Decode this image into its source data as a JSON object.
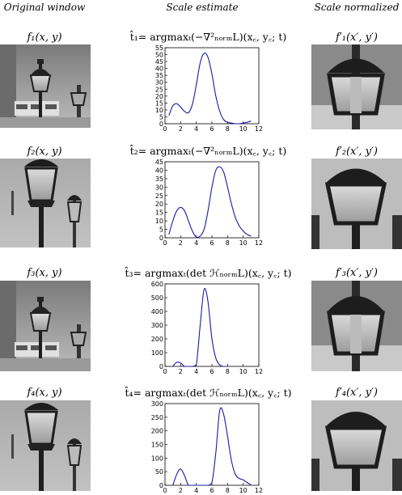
{
  "headers": {
    "original": "Original window",
    "scale": "Scale estimate",
    "normalized": "Scale normalized"
  },
  "rows": [
    {
      "left_label": "f₁(x, y)",
      "equation": "t̂₁= argmaxₜ(−∇²ₙₒᵣₘL)(x꜀, y꜀; t)",
      "right_label": "f′₁(x′, y′)"
    },
    {
      "left_label": "f₂(x, y)",
      "equation": "t̂₂= argmaxₜ(−∇²ₙₒᵣₘL)(x꜀, y꜀; t)",
      "right_label": "f′₂(x′, y′)"
    },
    {
      "left_label": "f₃(x, y)",
      "equation": "t̂₃= argmaxₜ(det ℋₙₒᵣₘL)(x꜀, y꜀; t)",
      "right_label": "f′₃(x′, y′)"
    },
    {
      "left_label": "f₄(x, y)",
      "equation": "t̂₄= argmaxₜ(det ℋₙₒᵣₘL)(x꜀, y꜀; t)",
      "right_label": "f′₄(x′, y′)"
    }
  ],
  "chart_data": [
    {
      "type": "line",
      "xlim": [
        0,
        12
      ],
      "ylim": [
        0,
        55
      ],
      "xticks": [
        "0",
        "2",
        "4",
        "6",
        "8",
        "10",
        "12"
      ],
      "yticks": [
        "0",
        "5",
        "10",
        "15",
        "20",
        "25",
        "30",
        "35",
        "40",
        "45",
        "50",
        "55"
      ],
      "x": [
        0.5,
        1,
        1.5,
        2,
        2.5,
        3,
        3.5,
        4,
        4.5,
        5,
        5.5,
        6,
        6.5,
        7,
        7.5,
        8,
        8.5,
        9,
        9.5,
        10,
        10.5,
        11
      ],
      "y": [
        6,
        13,
        14.5,
        12,
        9,
        8,
        14,
        28,
        44,
        51,
        48,
        36,
        20,
        9,
        3,
        1,
        0.5,
        0,
        0,
        0.5,
        1,
        2
      ],
      "color": "#1a1aa6"
    },
    {
      "type": "line",
      "xlim": [
        0,
        12
      ],
      "ylim": [
        0,
        45
      ],
      "xticks": [
        "0",
        "2",
        "4",
        "6",
        "8",
        "10",
        "12"
      ],
      "yticks": [
        "0",
        "5",
        "10",
        "15",
        "20",
        "25",
        "30",
        "35",
        "40",
        "45"
      ],
      "x": [
        0.5,
        1,
        1.5,
        2,
        2.5,
        3,
        3.5,
        4,
        4.5,
        5,
        5.5,
        6,
        6.5,
        7,
        7.5,
        8,
        8.5,
        9,
        9.5,
        10,
        10.5,
        11
      ],
      "y": [
        2,
        10,
        16,
        18,
        16,
        10,
        4,
        0.5,
        1,
        5,
        16,
        30,
        40,
        42,
        39,
        30,
        20,
        12,
        7,
        4,
        2,
        1
      ],
      "color": "#1a1aa6"
    },
    {
      "type": "line",
      "xlim": [
        0,
        12
      ],
      "ylim": [
        0,
        600
      ],
      "xticks": [
        "0",
        "2",
        "4",
        "6",
        "8",
        "10",
        "12"
      ],
      "yticks": [
        "0",
        "100",
        "200",
        "300",
        "400",
        "500",
        "600"
      ],
      "x": [
        1,
        1.5,
        2,
        2.5,
        3,
        3.5,
        4,
        4.5,
        5,
        5.5,
        6,
        6.5,
        7,
        7.5,
        8
      ],
      "y": [
        0,
        30,
        25,
        0,
        0,
        0,
        10,
        300,
        560,
        470,
        200,
        60,
        10,
        0,
        0
      ],
      "color": "#1a1aa6"
    },
    {
      "type": "line",
      "xlim": [
        0,
        12
      ],
      "ylim": [
        0,
        300
      ],
      "xticks": [
        "0",
        "2",
        "4",
        "6",
        "8",
        "10",
        "12"
      ],
      "yticks": [
        "0",
        "50",
        "100",
        "150",
        "200",
        "250",
        "300"
      ],
      "x": [
        1,
        1.5,
        2,
        2.5,
        3,
        3.5,
        4,
        4.5,
        5,
        5.5,
        6,
        6.5,
        7,
        7.5,
        8,
        8.5,
        9,
        9.5,
        10,
        10.5,
        11
      ],
      "y": [
        0,
        40,
        60,
        35,
        0,
        0,
        0,
        0,
        0,
        0,
        10,
        120,
        275,
        260,
        180,
        90,
        40,
        25,
        20,
        10,
        2
      ],
      "color": "#1a1aa6"
    }
  ]
}
